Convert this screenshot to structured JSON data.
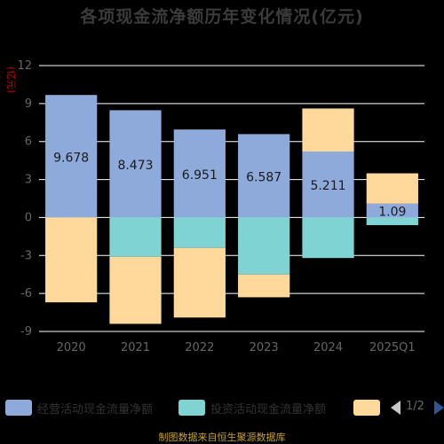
{
  "chart_data": {
    "type": "bar",
    "stacked": true,
    "title": "各项现金流净额历年变化情况(亿元)",
    "ylabel": "(亿元)",
    "ylim": [
      -9,
      12
    ],
    "yticks": [
      12,
      9,
      6,
      3,
      0,
      -3,
      -6,
      -9
    ],
    "categories": [
      "2020",
      "2021",
      "2022",
      "2023",
      "2024",
      "2025Q1"
    ],
    "series": [
      {
        "name": "经营活动现金流量净额",
        "values": [
          9.678,
          8.473,
          6.951,
          6.587,
          5.211,
          1.09
        ],
        "color": "#8eaadb",
        "show_labels": true
      },
      {
        "name": "投资活动现金流量净额",
        "values": [
          0,
          -3.1,
          -2.4,
          -4.5,
          -3.2,
          -0.6
        ],
        "color": "#7fd3d3",
        "show_labels": false
      },
      {
        "name": "",
        "values": [
          -6.7,
          -5.3,
          -5.5,
          -1.8,
          3.4,
          2.4
        ],
        "color": "#ffd89b",
        "show_labels": false
      }
    ],
    "grid": true,
    "legend_position": "bottom"
  },
  "legend": {
    "page_text": "1/2"
  },
  "source_note": "制图数据来自恒生聚源数据库",
  "colors": {
    "background": "#000000",
    "grid": "#ffffff",
    "axis_text": "#666666",
    "ylabel": "#c00000"
  }
}
